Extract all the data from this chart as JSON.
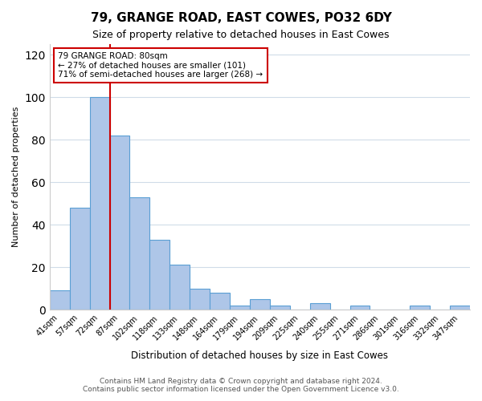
{
  "title": "79, GRANGE ROAD, EAST COWES, PO32 6DY",
  "subtitle": "Size of property relative to detached houses in East Cowes",
  "xlabel": "Distribution of detached houses by size in East Cowes",
  "ylabel": "Number of detached properties",
  "bar_labels": [
    "41sqm",
    "57sqm",
    "72sqm",
    "87sqm",
    "102sqm",
    "118sqm",
    "133sqm",
    "148sqm",
    "164sqm",
    "179sqm",
    "194sqm",
    "209sqm",
    "225sqm",
    "240sqm",
    "255sqm",
    "271sqm",
    "286sqm",
    "301sqm",
    "316sqm",
    "332sqm",
    "347sqm"
  ],
  "bar_values": [
    9,
    48,
    100,
    82,
    53,
    33,
    21,
    10,
    8,
    2,
    5,
    2,
    0,
    3,
    0,
    2,
    0,
    0,
    2,
    0,
    2
  ],
  "bar_color": "#aec6e8",
  "bar_edge_color": "#5a9fd4",
  "ylim": [
    0,
    125
  ],
  "yticks": [
    0,
    20,
    40,
    60,
    80,
    100,
    120
  ],
  "vline_x": 2.5,
  "vline_color": "#cc0000",
  "annotation_title": "79 GRANGE ROAD: 80sqm",
  "annotation_line1": "← 27% of detached houses are smaller (101)",
  "annotation_line2": "71% of semi-detached houses are larger (268) →",
  "annotation_box_color": "#ffffff",
  "annotation_box_edge": "#cc0000",
  "footer_line1": "Contains HM Land Registry data © Crown copyright and database right 2024.",
  "footer_line2": "Contains public sector information licensed under the Open Government Licence v3.0.",
  "bg_color": "#ffffff",
  "grid_color": "#d0dce8"
}
